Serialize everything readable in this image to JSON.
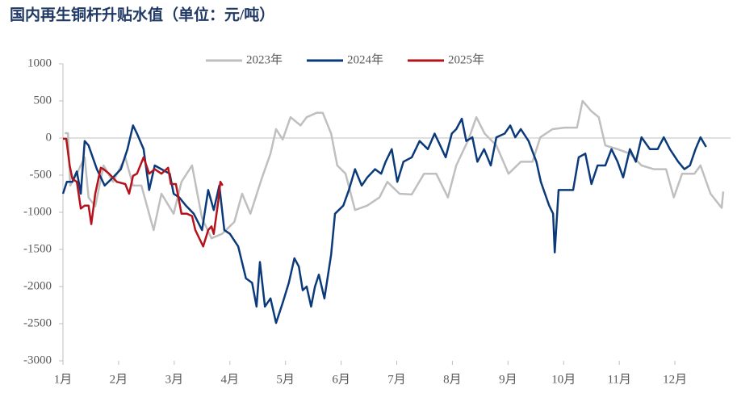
{
  "chart_data": {
    "type": "line",
    "title": "国内再生铜杆升贴水值（单位：元/吨）",
    "xlim": [
      1,
      13
    ],
    "ylim": [
      -3000,
      1000
    ],
    "xticks": [
      {
        "value": 1,
        "label": "1月"
      },
      {
        "value": 2,
        "label": "2月"
      },
      {
        "value": 3,
        "label": "3月"
      },
      {
        "value": 4,
        "label": "4月"
      },
      {
        "value": 5,
        "label": "5月"
      },
      {
        "value": 6,
        "label": "6月"
      },
      {
        "value": 7,
        "label": "7月"
      },
      {
        "value": 8,
        "label": "8月"
      },
      {
        "value": 9,
        "label": "9月"
      },
      {
        "value": 10,
        "label": "10月"
      },
      {
        "value": 11,
        "label": "11月"
      },
      {
        "value": 12,
        "label": "12月"
      }
    ],
    "yticks": [
      -3000,
      -2500,
      -2000,
      -1500,
      -1000,
      -500,
      0,
      500,
      1000
    ],
    "legend": "top",
    "series": [
      {
        "name": "2023年",
        "color": "#bfbfbf",
        "x": [
          1.03,
          1.09,
          1.13,
          1.25,
          1.39,
          1.46,
          1.58,
          1.73,
          1.9,
          2.12,
          2.26,
          2.41,
          2.63,
          2.77,
          2.99,
          3.13,
          3.32,
          3.5,
          3.67,
          3.86,
          4.08,
          4.22,
          4.37,
          4.58,
          4.73,
          4.83,
          4.95,
          5.09,
          5.27,
          5.38,
          5.56,
          5.67,
          5.82,
          5.93,
          6.08,
          6.25,
          6.47,
          6.69,
          6.83,
          7.05,
          7.27,
          7.49,
          7.71,
          7.92,
          8.07,
          8.29,
          8.43,
          8.58,
          8.79,
          9.01,
          9.23,
          9.44,
          9.58,
          9.8,
          10.02,
          10.24,
          10.34,
          10.5,
          10.63,
          10.75,
          10.97,
          11.19,
          11.4,
          11.62,
          11.84,
          11.98,
          12.13,
          12.35,
          12.46,
          12.64,
          12.84,
          12.87
        ],
        "values": [
          65,
          65,
          -640,
          -480,
          -260,
          -800,
          -920,
          -370,
          -590,
          -260,
          -640,
          -640,
          -1240,
          -750,
          -1020,
          -590,
          -370,
          -1080,
          -1350,
          -1290,
          -1130,
          -750,
          -1020,
          -530,
          -210,
          120,
          -20,
          280,
          170,
          280,
          340,
          340,
          60,
          -370,
          -480,
          -970,
          -910,
          -800,
          -590,
          -750,
          -760,
          -480,
          -480,
          -800,
          -370,
          -20,
          280,
          60,
          -100,
          -480,
          -320,
          -320,
          10,
          120,
          140,
          140,
          500,
          360,
          280,
          -100,
          -150,
          -210,
          -370,
          -420,
          -420,
          -800,
          -480,
          -480,
          -370,
          -750,
          -940,
          -720
        ]
      },
      {
        "name": "2024年",
        "color": "#0b3a7a",
        "x": [
          1.0,
          1.07,
          1.17,
          1.25,
          1.32,
          1.39,
          1.46,
          1.61,
          1.75,
          1.9,
          2.04,
          2.16,
          2.26,
          2.33,
          2.45,
          2.55,
          2.65,
          2.77,
          2.92,
          2.99,
          3.09,
          3.21,
          3.35,
          3.5,
          3.61,
          3.71,
          3.81,
          3.9,
          4.0,
          4.15,
          4.29,
          4.4,
          4.48,
          4.54,
          4.63,
          4.73,
          4.83,
          4.95,
          5.06,
          5.16,
          5.24,
          5.31,
          5.38,
          5.46,
          5.53,
          5.6,
          5.7,
          5.82,
          5.89,
          6.04,
          6.14,
          6.25,
          6.37,
          6.47,
          6.61,
          6.72,
          6.8,
          6.91,
          7.01,
          7.12,
          7.27,
          7.41,
          7.56,
          7.68,
          7.78,
          7.88,
          7.99,
          8.07,
          8.17,
          8.25,
          8.36,
          8.45,
          8.57,
          8.69,
          8.79,
          8.94,
          9.04,
          9.13,
          9.23,
          9.37,
          9.51,
          9.59,
          9.74,
          9.81,
          9.84,
          9.91,
          10.02,
          10.17,
          10.27,
          10.39,
          10.5,
          10.61,
          10.75,
          10.86,
          10.97,
          11.07,
          11.19,
          11.3,
          11.4,
          11.55,
          11.69,
          11.8,
          11.91,
          12.06,
          12.17,
          12.27,
          12.37,
          12.46,
          12.56
        ],
        "values": [
          -750,
          -590,
          -590,
          -450,
          -750,
          -40,
          -100,
          -420,
          -640,
          -530,
          -420,
          -150,
          170,
          60,
          -150,
          -700,
          -370,
          -420,
          -480,
          -750,
          -800,
          -910,
          -1020,
          -1240,
          -700,
          -970,
          -640,
          -1240,
          -1290,
          -1460,
          -1890,
          -1950,
          -2270,
          -1670,
          -2270,
          -2160,
          -2490,
          -2220,
          -1950,
          -1620,
          -1730,
          -2050,
          -2000,
          -2270,
          -2000,
          -1840,
          -2160,
          -1570,
          -1020,
          -910,
          -700,
          -420,
          -640,
          -530,
          -420,
          -480,
          -320,
          -150,
          -590,
          -320,
          -260,
          -40,
          -150,
          60,
          -100,
          -260,
          60,
          120,
          260,
          -40,
          10,
          -320,
          -150,
          -370,
          10,
          60,
          170,
          10,
          120,
          -40,
          -320,
          -590,
          -910,
          -1020,
          -1540,
          -700,
          -700,
          -700,
          -260,
          -210,
          -620,
          -370,
          -370,
          -150,
          -320,
          -530,
          -150,
          -320,
          10,
          -150,
          -150,
          10,
          -150,
          -320,
          -420,
          -370,
          -150,
          10,
          -120
        ]
      },
      {
        "name": "2025年",
        "color": "#b5121b",
        "x": [
          1.0,
          1.06,
          1.12,
          1.17,
          1.25,
          1.32,
          1.39,
          1.46,
          1.51,
          1.58,
          1.68,
          1.73,
          1.83,
          1.97,
          2.12,
          2.19,
          2.26,
          2.33,
          2.45,
          2.55,
          2.65,
          2.77,
          2.89,
          2.94,
          3.03,
          3.13,
          3.23,
          3.32,
          3.38,
          3.47,
          3.52,
          3.61,
          3.67,
          3.71,
          3.79,
          3.83,
          3.87
        ],
        "values": [
          -10,
          -10,
          -370,
          -550,
          -590,
          -950,
          -910,
          -910,
          -1160,
          -750,
          -400,
          -420,
          -480,
          -590,
          -620,
          -750,
          -510,
          -480,
          -260,
          -480,
          -420,
          -480,
          -400,
          -620,
          -620,
          -1020,
          -1020,
          -1050,
          -1240,
          -1380,
          -1460,
          -1240,
          -1190,
          -1290,
          -860,
          -590,
          -640
        ]
      }
    ]
  }
}
